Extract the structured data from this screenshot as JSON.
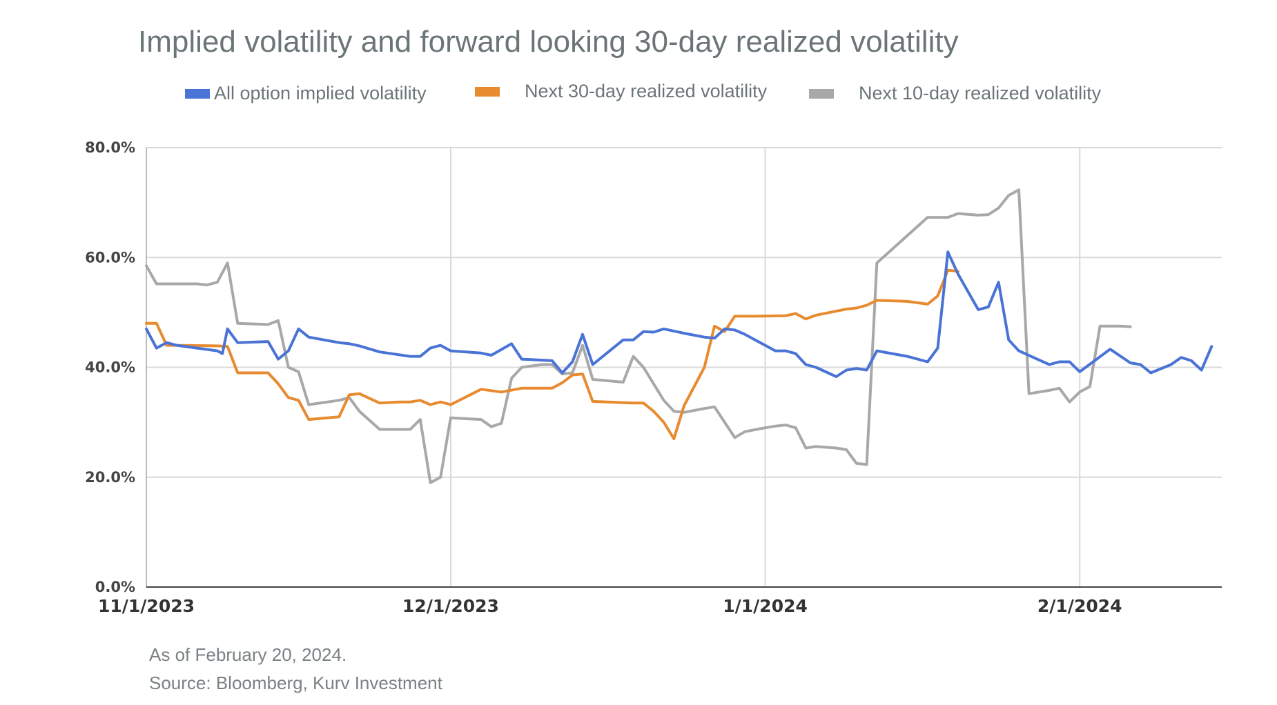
{
  "title": "Implied volatility and forward looking 30-day realized volatility",
  "footnote": {
    "line1": "As of February 20, 2024.",
    "line2": "Source: Bloomberg, Kurv Investment"
  },
  "chart_data": {
    "type": "line",
    "title": "Implied volatility and forward looking 30-day realized volatility",
    "xlabel": "",
    "ylabel": "",
    "ylim": [
      0,
      80
    ],
    "grid": true,
    "legend_position": "top",
    "y_ticks": [
      {
        "value": 0,
        "label": "0.0%"
      },
      {
        "value": 20,
        "label": "20.0%"
      },
      {
        "value": 40,
        "label": "40.0%"
      },
      {
        "value": 60,
        "label": "60.0%"
      },
      {
        "value": 80,
        "label": "80.0%"
      }
    ],
    "x_ticks": [
      {
        "value": 0,
        "label": "11/1/2023"
      },
      {
        "value": 30,
        "label": "12/1/2023"
      },
      {
        "value": 61,
        "label": "1/1/2024"
      },
      {
        "value": 92,
        "label": "2/1/2024"
      }
    ],
    "xlim": [
      0,
      106
    ],
    "series": [
      {
        "name": "All option implied volatility",
        "color": "#4a73d6",
        "points": [
          [
            0,
            47
          ],
          [
            1,
            43.5
          ],
          [
            2,
            44.5
          ],
          [
            3,
            44
          ],
          [
            5,
            43.5
          ],
          [
            7,
            43
          ],
          [
            7.5,
            42.5
          ],
          [
            8,
            47
          ],
          [
            9,
            44.5
          ],
          [
            12,
            44.7
          ],
          [
            13,
            41.5
          ],
          [
            14,
            43
          ],
          [
            15,
            47
          ],
          [
            16,
            45.5
          ],
          [
            19,
            44.5
          ],
          [
            20,
            44.3
          ],
          [
            21,
            43.9
          ],
          [
            23,
            42.8
          ],
          [
            26,
            42
          ],
          [
            27,
            42
          ],
          [
            28,
            43.5
          ],
          [
            29,
            44
          ],
          [
            30,
            43
          ],
          [
            33,
            42.6
          ],
          [
            34,
            42.2
          ],
          [
            36,
            44.3
          ],
          [
            37,
            41.5
          ],
          [
            40,
            41.2
          ],
          [
            41,
            39
          ],
          [
            42,
            41
          ],
          [
            43,
            46
          ],
          [
            44,
            40.5
          ],
          [
            47,
            45
          ],
          [
            48,
            45
          ],
          [
            49,
            46.5
          ],
          [
            50,
            46.4
          ],
          [
            51,
            47
          ],
          [
            53,
            46.2
          ],
          [
            55,
            45.5
          ],
          [
            56,
            45.3
          ],
          [
            57,
            47
          ],
          [
            58,
            46.8
          ],
          [
            59,
            46
          ],
          [
            62,
            43
          ],
          [
            63,
            43
          ],
          [
            64,
            42.5
          ],
          [
            65,
            40.5
          ],
          [
            66,
            40
          ],
          [
            68,
            38.3
          ],
          [
            69,
            39.5
          ],
          [
            70,
            39.8
          ],
          [
            71,
            39.5
          ],
          [
            72,
            43
          ],
          [
            75,
            42
          ],
          [
            77,
            41
          ],
          [
            78,
            43.5
          ],
          [
            79,
            61
          ],
          [
            80,
            57
          ],
          [
            82,
            50.5
          ],
          [
            83,
            51
          ],
          [
            84,
            55.5
          ],
          [
            85,
            45
          ],
          [
            86,
            43
          ],
          [
            89,
            40.5
          ],
          [
            90,
            41
          ],
          [
            91,
            41
          ],
          [
            92,
            39.2
          ],
          [
            95,
            43.3
          ],
          [
            97,
            40.8
          ],
          [
            98,
            40.5
          ],
          [
            99,
            39
          ],
          [
            101,
            40.5
          ],
          [
            102,
            41.8
          ],
          [
            103,
            41.2
          ],
          [
            104,
            39.5
          ],
          [
            105,
            43.8
          ]
        ]
      },
      {
        "name": "Next 30-day realized volatility",
        "color": "#e88a30",
        "points": [
          [
            0,
            48
          ],
          [
            1,
            48
          ],
          [
            2,
            44
          ],
          [
            3,
            44
          ],
          [
            7,
            43.9
          ],
          [
            8,
            43.8
          ],
          [
            9,
            39
          ],
          [
            10,
            39
          ],
          [
            12,
            39
          ],
          [
            13,
            37
          ],
          [
            14,
            34.5
          ],
          [
            15,
            34
          ],
          [
            16,
            30.5
          ],
          [
            19,
            31
          ],
          [
            20,
            35
          ],
          [
            21,
            35.2
          ],
          [
            23,
            33.5
          ],
          [
            25,
            33.7
          ],
          [
            26,
            33.7
          ],
          [
            27,
            34
          ],
          [
            28,
            33.2
          ],
          [
            29,
            33.7
          ],
          [
            30,
            33.2
          ],
          [
            33,
            36
          ],
          [
            35,
            35.5
          ],
          [
            37,
            36.2
          ],
          [
            40,
            36.2
          ],
          [
            41,
            37.2
          ],
          [
            42,
            38.6
          ],
          [
            43,
            38.8
          ],
          [
            44,
            33.8
          ],
          [
            48,
            33.5
          ],
          [
            49,
            33.5
          ],
          [
            50,
            32
          ],
          [
            51,
            30
          ],
          [
            52,
            27
          ],
          [
            53,
            33
          ],
          [
            55,
            40
          ],
          [
            56,
            47.5
          ],
          [
            57,
            46.5
          ],
          [
            58,
            49.3
          ],
          [
            60,
            49.3
          ],
          [
            63,
            49.4
          ],
          [
            64,
            49.8
          ],
          [
            65,
            48.8
          ],
          [
            66,
            49.5
          ],
          [
            69,
            50.6
          ],
          [
            70,
            50.8
          ],
          [
            71,
            51.3
          ],
          [
            72,
            52.2
          ],
          [
            75,
            52
          ],
          [
            77,
            51.5
          ],
          [
            78,
            53
          ],
          [
            79,
            57.7
          ],
          [
            80,
            57.5
          ]
        ]
      },
      {
        "name": "Next 10-day realized volatility",
        "color": "#a8a8a8",
        "points": [
          [
            0,
            58.5
          ],
          [
            1,
            55.2
          ],
          [
            2,
            55.2
          ],
          [
            5,
            55.2
          ],
          [
            6,
            55
          ],
          [
            7,
            55.5
          ],
          [
            8,
            59
          ],
          [
            9,
            48
          ],
          [
            12,
            47.8
          ],
          [
            13,
            48.5
          ],
          [
            14,
            40
          ],
          [
            15,
            39.2
          ],
          [
            16,
            33.2
          ],
          [
            19,
            34
          ],
          [
            20,
            34.5
          ],
          [
            21,
            32
          ],
          [
            23,
            28.7
          ],
          [
            26,
            28.7
          ],
          [
            27,
            30.5
          ],
          [
            28,
            19
          ],
          [
            29,
            20
          ],
          [
            30,
            30.8
          ],
          [
            33,
            30.5
          ],
          [
            34,
            29.2
          ],
          [
            35,
            29.8
          ],
          [
            36,
            38
          ],
          [
            37,
            40
          ],
          [
            39,
            40.5
          ],
          [
            40,
            40.5
          ],
          [
            41,
            38.8
          ],
          [
            42,
            39
          ],
          [
            43,
            44
          ],
          [
            44,
            37.8
          ],
          [
            47,
            37.3
          ],
          [
            48,
            42
          ],
          [
            49,
            40
          ],
          [
            51,
            34
          ],
          [
            52,
            32
          ],
          [
            53,
            31.8
          ],
          [
            55,
            32.5
          ],
          [
            56,
            32.8
          ],
          [
            57,
            30
          ],
          [
            58,
            27.2
          ],
          [
            59,
            28.3
          ],
          [
            61,
            29
          ],
          [
            62,
            29.3
          ],
          [
            63,
            29.5
          ],
          [
            64,
            29
          ],
          [
            65,
            25.3
          ],
          [
            66,
            25.6
          ],
          [
            68,
            25.3
          ],
          [
            69,
            25
          ],
          [
            70,
            22.5
          ],
          [
            71,
            22.3
          ],
          [
            72,
            59
          ],
          [
            77,
            67.3
          ],
          [
            79,
            67.3
          ],
          [
            80,
            68
          ],
          [
            82,
            67.7
          ],
          [
            83,
            67.8
          ],
          [
            84,
            69
          ],
          [
            85,
            71.3
          ],
          [
            86,
            72.3
          ],
          [
            87,
            35.2
          ],
          [
            89,
            35.8
          ],
          [
            90,
            36.2
          ],
          [
            91,
            33.7
          ],
          [
            92,
            35.5
          ],
          [
            93,
            36.5
          ],
          [
            94,
            47.5
          ],
          [
            96,
            47.5
          ],
          [
            97,
            47.4
          ]
        ]
      }
    ]
  }
}
